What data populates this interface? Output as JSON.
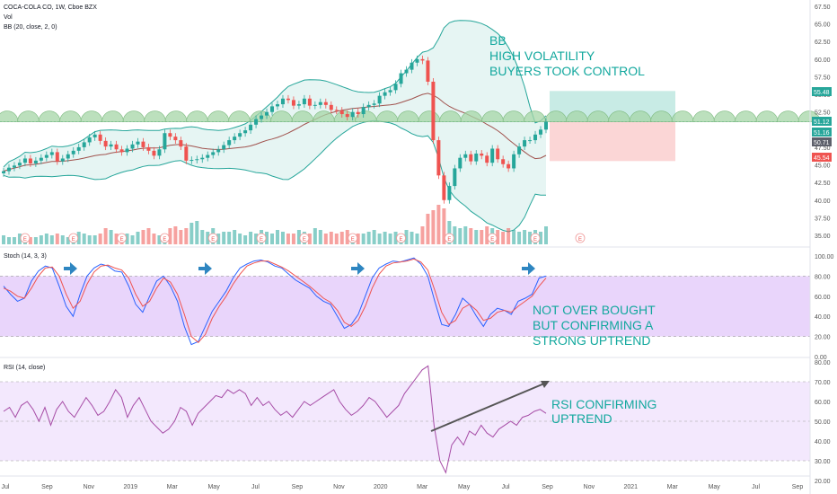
{
  "header": {
    "symbol": "COCA-COLA CO, 1W, Cboe BZX",
    "vol_label": "Vol",
    "bb_label": "BB (20, close, 2, 0)"
  },
  "panes": {
    "stoch_label": "Stoch (14, 3, 3)",
    "rsi_label": "RSI (14, close)"
  },
  "annotations": {
    "bb_line1": "BB",
    "bb_line2": "HIGH VOLATILITY",
    "bb_line3": "BUYERS TOOK CONTROL",
    "stoch_line1": "NOT OVER BOUGHT",
    "stoch_line2": "BUT CONFIRMING A",
    "stoch_line3": "STRONG UPTREND",
    "rsi_line1": "RSI CONFIRMING",
    "rsi_line2": "UPTREND"
  },
  "price_tags": {
    "target": "55.48",
    "current": "51.12",
    "mid": "51.16",
    "basis": "50.71",
    "stop": "45.54"
  },
  "earnings_marker": "E",
  "colors": {
    "up": "#26a69a",
    "down": "#ef5350",
    "bb_fill": "#e6f5f3",
    "band_purple": "#e9d5fb",
    "arc_green": "#a5d6a7",
    "arrow_blue": "#2e86c1",
    "annotation": "#13a89e",
    "target_zone": "#c8ebe5",
    "stop_zone": "#fbd6d6"
  },
  "chart_data": [
    {
      "type": "candlestick",
      "pane": "price",
      "title": "COCA-COLA CO, 1W, Cboe BZX",
      "y_ticks": [
        "67.50",
        "65.00",
        "62.50",
        "60.00",
        "57.50",
        "55.00",
        "52.50",
        "50.00",
        "47.50",
        "45.00",
        "42.50",
        "40.00",
        "37.50",
        "35.00"
      ],
      "x_ticks": [
        "Jul",
        "Sep",
        "Nov",
        "2019",
        "Mar",
        "May",
        "Jul",
        "Sep",
        "Nov",
        "2020",
        "Mar",
        "May",
        "Jul",
        "Sep",
        "Nov",
        "2021",
        "Mar",
        "May",
        "Jul",
        "Sep"
      ],
      "close": [
        44.1,
        44.6,
        44.9,
        45.3,
        45.9,
        45.2,
        45.6,
        46.0,
        46.4,
        46.8,
        45.5,
        45.9,
        46.5,
        47.0,
        47.5,
        48.2,
        48.9,
        49.3,
        48.4,
        47.6,
        47.9,
        47.2,
        46.8,
        47.3,
        47.9,
        48.3,
        47.5,
        47.0,
        46.3,
        47.2,
        49.5,
        49.0,
        48.5,
        47.6,
        45.6,
        45.7,
        45.8,
        46.0,
        46.4,
        46.8,
        47.2,
        47.8,
        48.5,
        49.0,
        49.5,
        49.9,
        50.7,
        51.5,
        52.0,
        52.5,
        53.3,
        53.6,
        54.4,
        54.2,
        53.4,
        53.6,
        54.4,
        53.4,
        53.5,
        53.9,
        53.5,
        52.8,
        52.7,
        52.2,
        51.8,
        52.5,
        52.2,
        53.2,
        53.5,
        53.7,
        54.8,
        55.3,
        55.6,
        56.5,
        58.0,
        58.5,
        59.5,
        60.0,
        59.8,
        56.8,
        48.5,
        43.5,
        40.0,
        42.0,
        44.5,
        46.0,
        46.5,
        45.5,
        46.6,
        46.3,
        45.3,
        47.3,
        45.8,
        45.1,
        44.5,
        46.5,
        47.6,
        48.5,
        48.5,
        49.3,
        50.0,
        51.12
      ]
    },
    {
      "type": "bar",
      "pane": "volume",
      "name": "Vol",
      "values": [
        5,
        4,
        4,
        6,
        5,
        4,
        4,
        5,
        6,
        5,
        6,
        5,
        4,
        5,
        7,
        6,
        5,
        5,
        6,
        9,
        8,
        6,
        5,
        6,
        5,
        7,
        8,
        9,
        6,
        5,
        6,
        9,
        10,
        8,
        9,
        12,
        13,
        8,
        7,
        9,
        6,
        7,
        7,
        8,
        6,
        5,
        7,
        6,
        8,
        7,
        6,
        8,
        7,
        6,
        6,
        8,
        7,
        6,
        9,
        8,
        6,
        7,
        6,
        7,
        8,
        6,
        6,
        6,
        7,
        8,
        6,
        7,
        6,
        7,
        6,
        8,
        7,
        6,
        10,
        17,
        19,
        22,
        20,
        13,
        10,
        9,
        10,
        9,
        8,
        8,
        10,
        9,
        8,
        7,
        9,
        8,
        7,
        8,
        7,
        8,
        7,
        10
      ]
    },
    {
      "type": "line",
      "pane": "stoch",
      "title": "Stoch (14, 3, 3)",
      "y_ticks": [
        "100.00",
        "80.00",
        "60.00",
        "40.00",
        "20.00",
        "0.00"
      ],
      "series": [
        {
          "name": "%K",
          "values": [
            70,
            62,
            55,
            58,
            75,
            85,
            90,
            88,
            70,
            50,
            40,
            62,
            80,
            88,
            92,
            90,
            85,
            84,
            70,
            52,
            44,
            60,
            75,
            80,
            70,
            55,
            30,
            12,
            15,
            30,
            45,
            55,
            65,
            78,
            88,
            92,
            95,
            96,
            94,
            90,
            88,
            82,
            76,
            72,
            68,
            60,
            55,
            52,
            40,
            28,
            32,
            42,
            60,
            78,
            88,
            92,
            95,
            94,
            96,
            98,
            92,
            80,
            55,
            32,
            30,
            42,
            58,
            52,
            40,
            30,
            42,
            48,
            46,
            42,
            55,
            58,
            62,
            78,
            80
          ]
        },
        {
          "name": "%D",
          "values": [
            68,
            65,
            60,
            58,
            68,
            80,
            88,
            89,
            80,
            62,
            48,
            55,
            72,
            84,
            90,
            91,
            88,
            86,
            78,
            62,
            50,
            55,
            68,
            78,
            74,
            62,
            42,
            20,
            14,
            22,
            38,
            50,
            60,
            72,
            82,
            90,
            93,
            95,
            95,
            92,
            89,
            85,
            80,
            75,
            70,
            64,
            58,
            54,
            46,
            34,
            30,
            36,
            50,
            68,
            82,
            90,
            93,
            94,
            95,
            97,
            94,
            86,
            66,
            44,
            32,
            36,
            48,
            52,
            46,
            36,
            38,
            44,
            46,
            44,
            50,
            55,
            60,
            70,
            78
          ]
        }
      ]
    },
    {
      "type": "line",
      "pane": "rsi",
      "title": "RSI (14, close)",
      "y_ticks": [
        "80.00",
        "70.00",
        "60.00",
        "50.00",
        "40.00",
        "30.00",
        "20.00"
      ],
      "series": [
        {
          "name": "RSI",
          "values": [
            55,
            57,
            52,
            58,
            60,
            56,
            50,
            57,
            48,
            56,
            60,
            55,
            52,
            57,
            62,
            58,
            53,
            55,
            60,
            66,
            62,
            52,
            58,
            62,
            56,
            50,
            47,
            44,
            46,
            50,
            57,
            55,
            48,
            54,
            57,
            60,
            63,
            62,
            66,
            64,
            66,
            64,
            58,
            62,
            58,
            60,
            56,
            53,
            55,
            52,
            56,
            60,
            58,
            60,
            62,
            64,
            66,
            60,
            56,
            53,
            55,
            58,
            62,
            60,
            56,
            52,
            55,
            58,
            64,
            68,
            72,
            76,
            78,
            48,
            30,
            24,
            38,
            42,
            38,
            45,
            43,
            48,
            44,
            42,
            46,
            48,
            50,
            48,
            52,
            53,
            55,
            56,
            54
          ]
        }
      ]
    }
  ]
}
